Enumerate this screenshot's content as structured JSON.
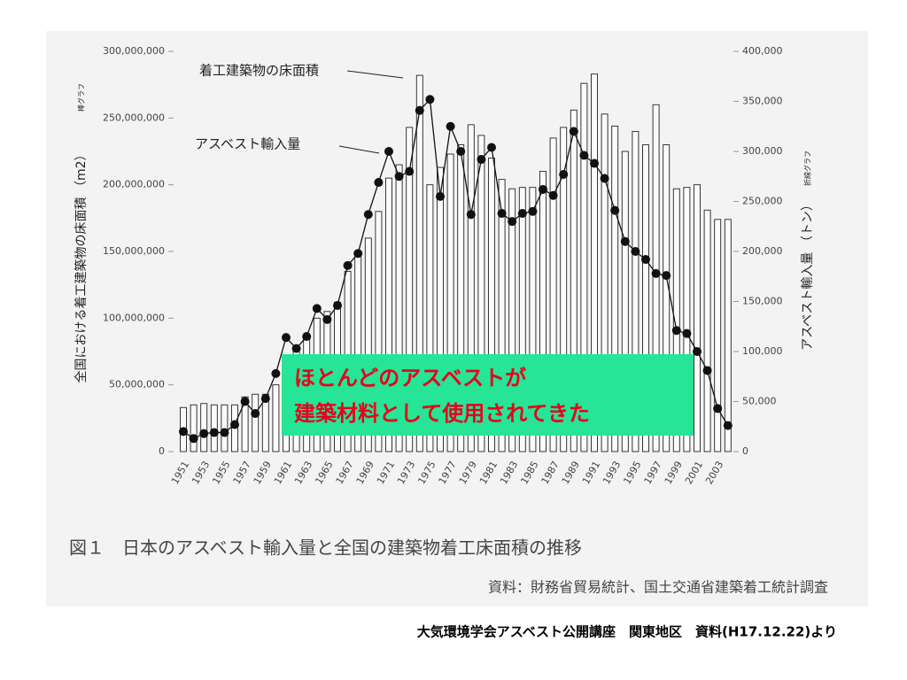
{
  "chart_data": {
    "type": "bar",
    "y_label": "全国における着工建築物の床面積 （m2）",
    "y_note": "棒グラフ",
    "y2_label": "アスベスト輸入量 （トン）",
    "y2_note": "折線グラフ",
    "callout": [
      "ほとんどのアスベストが",
      "建築材料として使用されてきた"
    ],
    "categories": [
      "1951",
      null,
      "1953",
      null,
      "1955",
      null,
      "1957",
      null,
      "1959",
      null,
      "1961",
      null,
      "1963",
      null,
      "1965",
      null,
      "1967",
      null,
      "1969",
      null,
      "1971",
      null,
      "1973",
      null,
      "1975",
      null,
      "1977",
      null,
      "1979",
      null,
      "1981",
      null,
      "1983",
      null,
      "1985",
      null,
      "1987",
      null,
      "1989",
      null,
      "1991",
      null,
      "1993",
      null,
      "1995",
      null,
      "1997",
      null,
      "1999",
      null,
      "2001",
      null,
      "2003",
      null
    ],
    "series": [
      {
        "name": "着工建築物の床面積",
        "type": "bar",
        "color": "#222222",
        "values": [
          33000000,
          35000000,
          36000000,
          35000000,
          35000000,
          35000000,
          41000000,
          43000000,
          43000000,
          50000000,
          65000000,
          78000000,
          85000000,
          100000000,
          105000000,
          112000000,
          135000000,
          148000000,
          160000000,
          180000000,
          205000000,
          215000000,
          243000000,
          282000000,
          200000000,
          213000000,
          223000000,
          230000000,
          245000000,
          237000000,
          220000000,
          204000000,
          197000000,
          198000000,
          198000000,
          210000000,
          235000000,
          243000000,
          256000000,
          276000000,
          283000000,
          253000000,
          244000000,
          225000000,
          240000000,
          230000000,
          260000000,
          230000000,
          197000000,
          198000000,
          200000000,
          181000000,
          174000000,
          174000000
        ]
      },
      {
        "name": "アスベスト輸入量",
        "type": "line",
        "axis": "y2",
        "color": "#111111",
        "values": [
          20000,
          13000,
          18000,
          19000,
          19000,
          27000,
          50000,
          38000,
          53000,
          78000,
          114000,
          103000,
          115000,
          143000,
          132000,
          146000,
          186000,
          198000,
          237000,
          269000,
          300000,
          275000,
          280000,
          341000,
          352000,
          255000,
          325000,
          300000,
          237000,
          292000,
          304000,
          238000,
          230000,
          238000,
          240000,
          262000,
          256000,
          277000,
          320000,
          296000,
          288000,
          273000,
          241000,
          210000,
          200000,
          192000,
          178000,
          176000,
          121000,
          118000,
          100000,
          81000,
          43000,
          26000
        ]
      }
    ],
    "ylim": [
      0,
      300000000
    ],
    "yticks": [
      0,
      {
        "value": 50000000,
        "label": "50,000,000"
      },
      {
        "value": 100000000,
        "label": "100,000,000"
      },
      {
        "value": 150000000,
        "label": "150,000,000"
      },
      {
        "value": 200000000,
        "label": "200,000,000"
      },
      {
        "value": 250000000,
        "label": "250,000,000"
      },
      {
        "value": 300000000,
        "label": "300,000,000"
      }
    ],
    "y2lim": [
      0,
      400000
    ],
    "y2ticks": [
      0,
      {
        "value": 50000,
        "label": "50,000"
      },
      {
        "value": 100000,
        "label": "100,000"
      },
      {
        "value": 150000,
        "label": "150,000"
      },
      {
        "value": 200000,
        "label": "200,000"
      },
      {
        "value": 250000,
        "label": "250,000"
      },
      {
        "value": 300000,
        "label": "300,000"
      },
      {
        "value": 350000,
        "label": "350,000"
      },
      {
        "value": 400000,
        "label": "400,000"
      }
    ]
  },
  "caption": "図１　日本のアスベスト輸入量と全国の建築物着工床面積の推移",
  "source": "資料：財務省貿易統計、国土交通省建築着工統計調査",
  "footer": "大気環境学会アスベスト公開講座　関東地区　資料(H17.12.22)より"
}
